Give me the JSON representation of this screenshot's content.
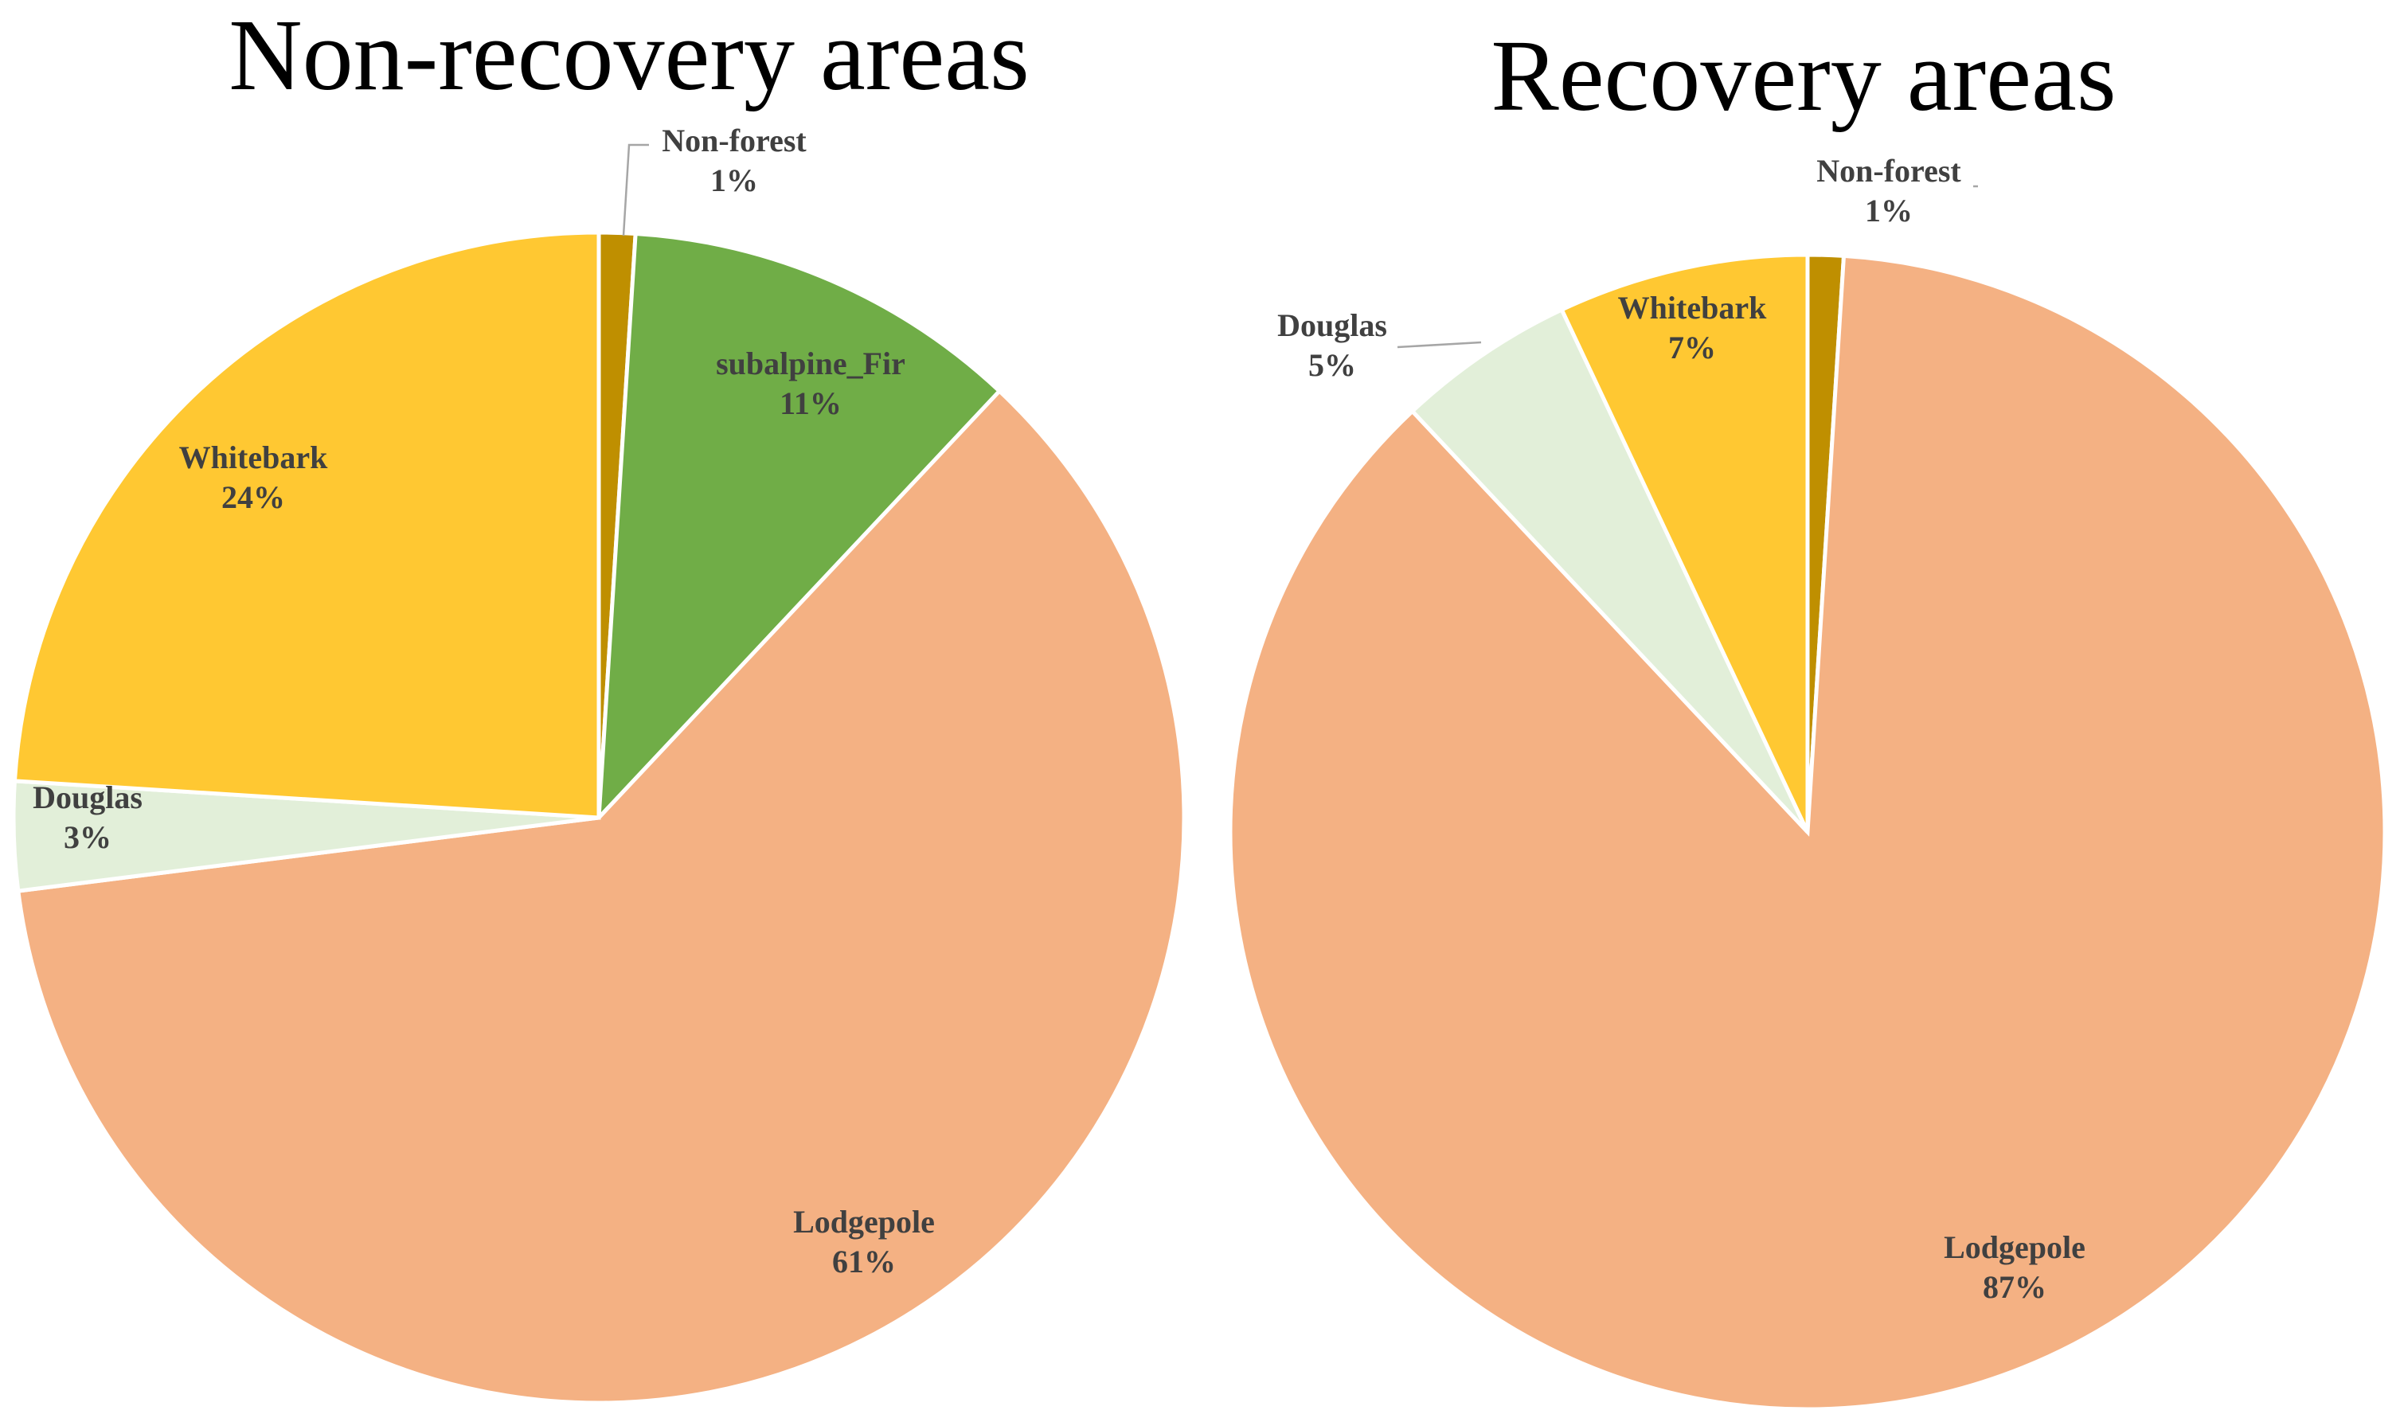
{
  "chart_data": [
    {
      "type": "pie",
      "title": "Non-recovery areas",
      "slices": [
        {
          "label": "Non-forest",
          "value": 1,
          "value_label": "1%",
          "color": "#bf8f00"
        },
        {
          "label": "subalpine_Fir",
          "value": 11,
          "value_label": "11%",
          "color": "#70ad47"
        },
        {
          "label": "Lodgepole",
          "value": 61,
          "value_label": "61%",
          "color": "#f4b183"
        },
        {
          "label": "Douglas",
          "value": 3,
          "value_label": "3%",
          "color": "#e2efd9"
        },
        {
          "label": "Whitebark",
          "value": 24,
          "value_label": "24%",
          "color": "#ffc832"
        }
      ]
    },
    {
      "type": "pie",
      "title": "Recovery areas",
      "slices": [
        {
          "label": "Non-forest",
          "value": 1,
          "value_label": "1%",
          "color": "#bf8f00"
        },
        {
          "label": "Lodgepole",
          "value": 87,
          "value_label": "87%",
          "color": "#f4b183"
        },
        {
          "label": "Douglas",
          "value": 5,
          "value_label": "5%",
          "color": "#e2efd9"
        },
        {
          "label": "Whitebark",
          "value": 7,
          "value_label": "7%",
          "color": "#ffc832"
        }
      ]
    }
  ]
}
